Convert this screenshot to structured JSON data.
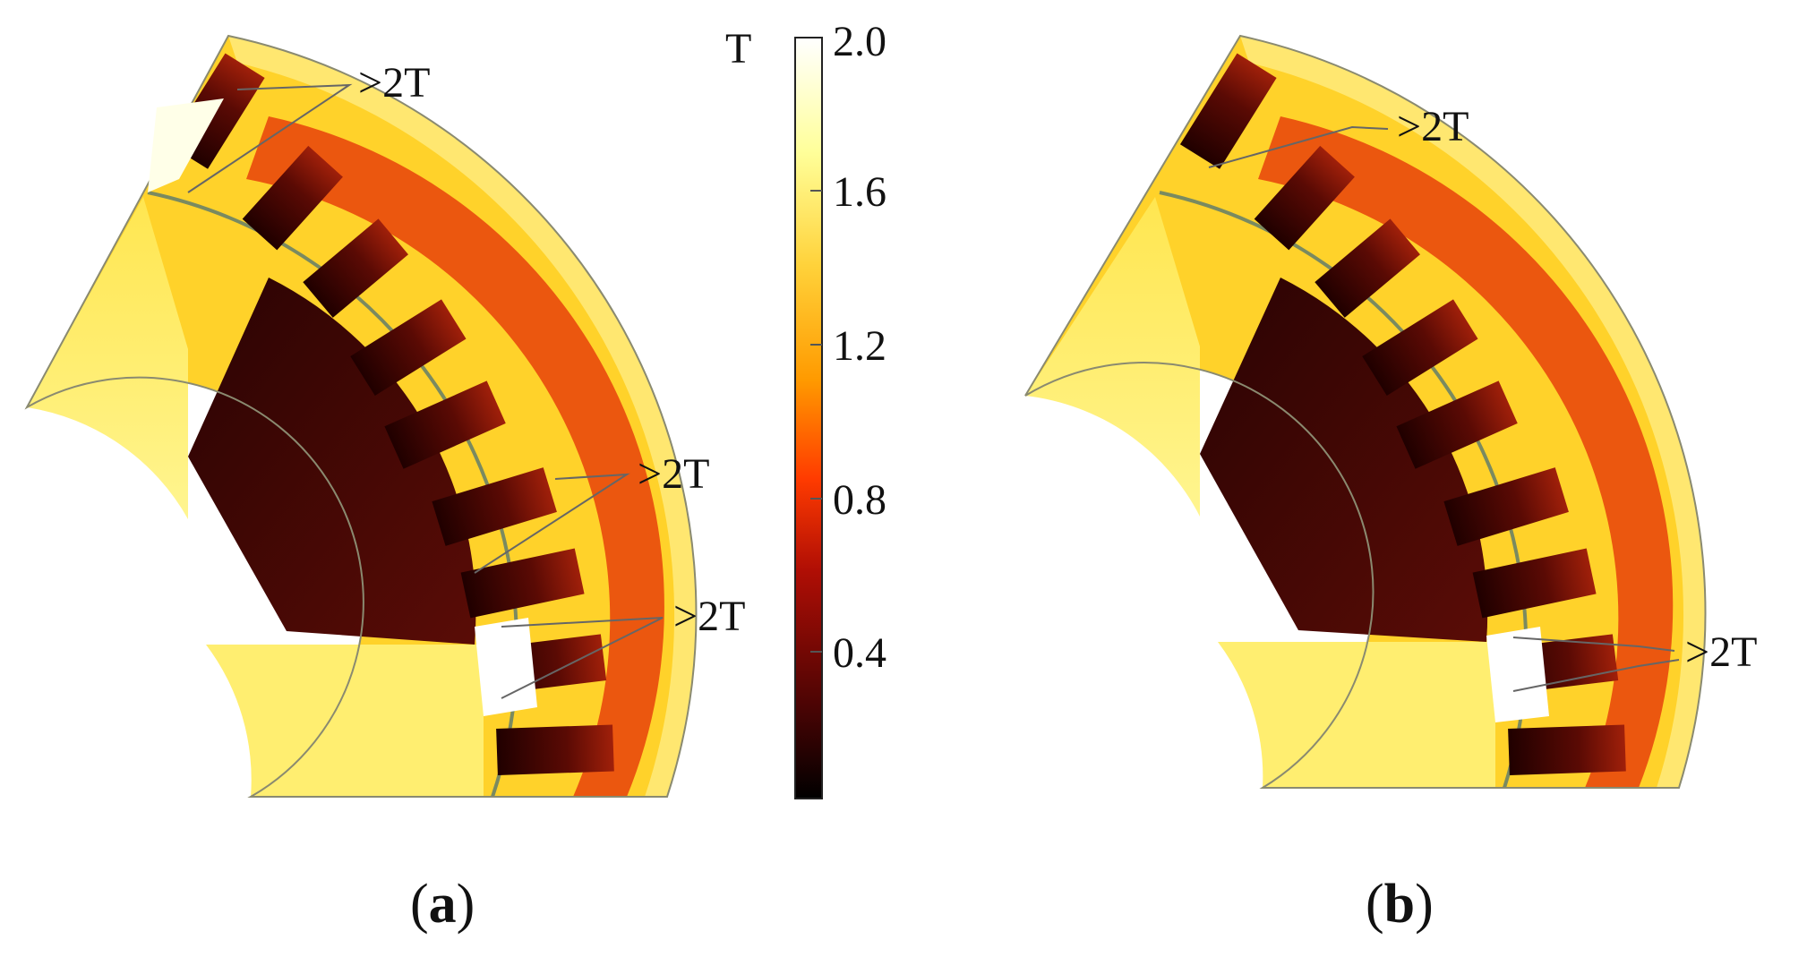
{
  "colorbar": {
    "unit": "T",
    "ticks": [
      "2.0",
      "1.6",
      "1.2",
      "0.8",
      "0.4"
    ],
    "range": [
      0,
      2.0
    ],
    "colormap": [
      "#000000",
      "#4a0404",
      "#b00e05",
      "#ff3b00",
      "#ff9a00",
      "#ffd23a",
      "#ffff9a",
      "#ffffff"
    ]
  },
  "panels": [
    {
      "caption": {
        "open": "(",
        "letter": "a",
        "close": ")"
      },
      "annotations": [
        ">2T",
        ">2T",
        ">2T"
      ]
    },
    {
      "caption": {
        "open": "(",
        "letter": "b",
        "close": ")"
      },
      "annotations": [
        ">2T",
        ">2T"
      ]
    }
  ]
}
